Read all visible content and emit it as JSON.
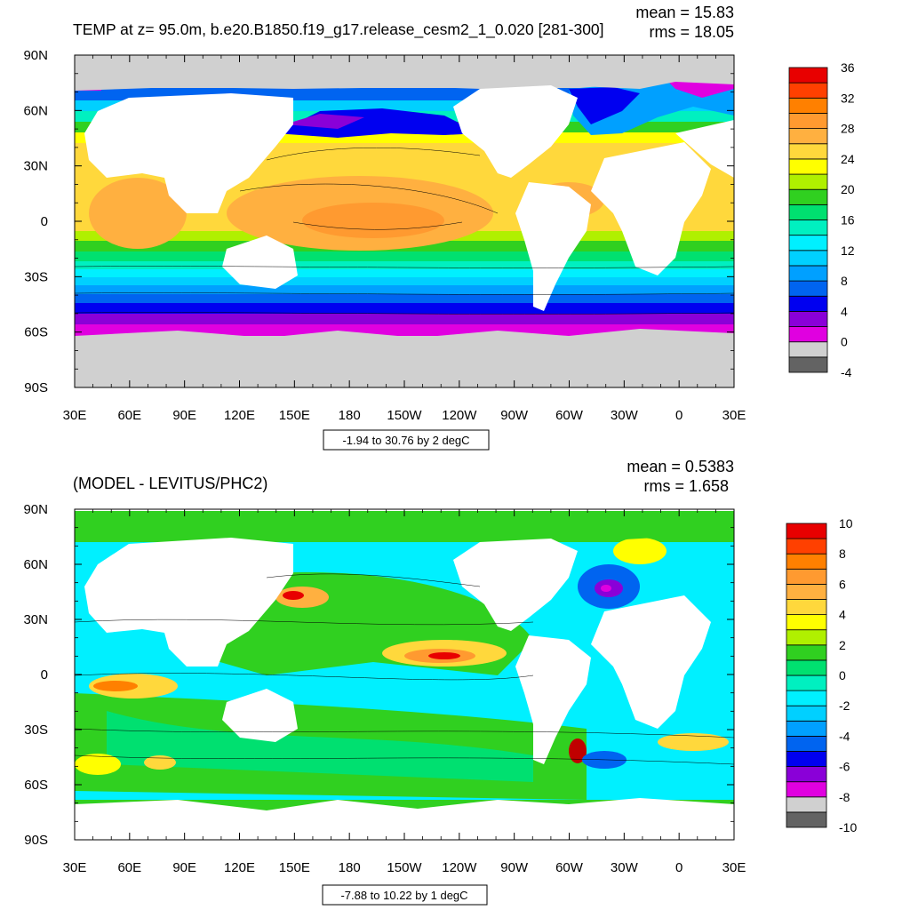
{
  "panels": [
    {
      "id": "top",
      "title": "TEMP at z=  95.0m, b.e20.B1850.f19_g17.release_cesm2_1_0.020 [281-300]",
      "stats": {
        "mean": "mean = 15.83",
        "rms": "rms = 18.05"
      },
      "contour_info": "-1.94 to 30.76 by 2 degC",
      "colorbar_labels": [
        "36",
        "32",
        "28",
        "24",
        "20",
        "16",
        "12",
        "8",
        "4",
        "0",
        "-4"
      ],
      "colors": [
        "#636363",
        "#d0d0d0",
        "#e000e0",
        "#8a00d8",
        "#0000f0",
        "#0064f0",
        "#00a0ff",
        "#00d0ff",
        "#00f0ff",
        "#00f0c0",
        "#00e070",
        "#30d020",
        "#b0f000",
        "#ffff00",
        "#ffd83c",
        "#ffb040",
        "#ff9a30",
        "#ff8000",
        "#ff4000",
        "#e80000",
        "#c00000"
      ]
    },
    {
      "id": "bottom",
      "title": "(MODEL - LEVITUS/PHC2)",
      "stats": {
        "mean": "mean = 0.5383",
        "rms": "rms = 1.658"
      },
      "contour_info": "-7.88 to 10.22 by 1 degC",
      "colorbar_labels": [
        "10",
        "8",
        "6",
        "4",
        "2",
        "0",
        "-2",
        "-4",
        "-6",
        "-8",
        "-10"
      ],
      "colors": [
        "#636363",
        "#d0d0d0",
        "#e000e0",
        "#8a00d8",
        "#0000f0",
        "#0064f0",
        "#00a0ff",
        "#00d0ff",
        "#00f0ff",
        "#00f0c0",
        "#00e070",
        "#30d020",
        "#b0f000",
        "#ffff00",
        "#ffd83c",
        "#ffb040",
        "#ff9a30",
        "#ff8000",
        "#ff4000",
        "#e80000",
        "#c00000"
      ]
    }
  ],
  "chart_data": [
    {
      "type": "heatmap",
      "title": "TEMP at z=  95.0m, b.e20.B1850.f19_g17.release_cesm2_1_0.020 [281-300]",
      "x_tick_labels": [
        "30E",
        "60E",
        "90E",
        "120E",
        "150E",
        "180",
        "150W",
        "120W",
        "90W",
        "60W",
        "30W",
        "0",
        "30E"
      ],
      "y_tick_labels": [
        "90N",
        "60N",
        "30N",
        "0",
        "30S",
        "60S",
        "90S"
      ],
      "xlim": [
        30,
        390
      ],
      "ylim": [
        -90,
        90
      ],
      "colorbar_levels": [
        -4,
        -2,
        0,
        2,
        4,
        6,
        8,
        10,
        12,
        14,
        16,
        18,
        20,
        22,
        24,
        26,
        28,
        30,
        32,
        34,
        36
      ],
      "mean": 15.83,
      "rms": 18.05,
      "contour_min": -1.94,
      "contour_max": 30.76,
      "contour_interval": 2,
      "units": "degC"
    },
    {
      "type": "heatmap",
      "title": "(MODEL - LEVITUS/PHC2)",
      "x_tick_labels": [
        "30E",
        "60E",
        "90E",
        "120E",
        "150E",
        "180",
        "150W",
        "120W",
        "90W",
        "60W",
        "30W",
        "0",
        "30E"
      ],
      "y_tick_labels": [
        "90N",
        "60N",
        "30N",
        "0",
        "30S",
        "60S",
        "90S"
      ],
      "xlim": [
        30,
        390
      ],
      "ylim": [
        -90,
        90
      ],
      "colorbar_levels": [
        -10,
        -9,
        -8,
        -7,
        -6,
        -5,
        -4,
        -3,
        -2,
        -1,
        0,
        1,
        2,
        3,
        4,
        5,
        6,
        7,
        8,
        9,
        10
      ],
      "mean": 0.5383,
      "rms": 1.658,
      "contour_min": -7.88,
      "contour_max": 10.22,
      "contour_interval": 1,
      "units": "degC"
    }
  ]
}
